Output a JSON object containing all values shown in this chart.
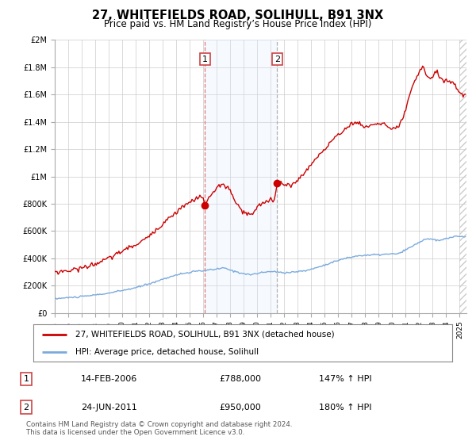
{
  "title": "27, WHITEFIELDS ROAD, SOLIHULL, B91 3NX",
  "subtitle": "Price paid vs. HM Land Registry’s House Price Index (HPI)",
  "title_fontsize": 10.5,
  "subtitle_fontsize": 8.5,
  "ylim": [
    0,
    2000000
  ],
  "xlim_start": 1995.0,
  "xlim_end": 2025.5,
  "yticks": [
    0,
    200000,
    400000,
    600000,
    800000,
    1000000,
    1200000,
    1400000,
    1600000,
    1800000,
    2000000
  ],
  "ytick_labels": [
    "£0",
    "£200K",
    "£400K",
    "£600K",
    "£800K",
    "£1M",
    "£1.2M",
    "£1.4M",
    "£1.6M",
    "£1.8M",
    "£2M"
  ],
  "xticks": [
    1995,
    1996,
    1997,
    1998,
    1999,
    2000,
    2001,
    2002,
    2003,
    2004,
    2005,
    2006,
    2007,
    2008,
    2009,
    2010,
    2011,
    2012,
    2013,
    2014,
    2015,
    2016,
    2017,
    2018,
    2019,
    2020,
    2021,
    2022,
    2023,
    2024,
    2025
  ],
  "sale1_x": 2006.12,
  "sale1_y": 788000,
  "sale1_date": "14-FEB-2006",
  "sale1_price": "£788,000",
  "sale1_hpi": "147% ↑ HPI",
  "sale2_x": 2011.48,
  "sale2_y": 950000,
  "sale2_date": "24-JUN-2011",
  "sale2_price": "£950,000",
  "sale2_hpi": "180% ↑ HPI",
  "red_line_color": "#cc0000",
  "blue_line_color": "#7aaadd",
  "shade_color": "#ddeeff",
  "grid_color": "#cccccc",
  "background_color": "#ffffff",
  "legend_label_red": "27, WHITEFIELDS ROAD, SOLIHULL, B91 3NX (detached house)",
  "legend_label_blue": "HPI: Average price, detached house, Solihull",
  "footer": "Contains HM Land Registry data © Crown copyright and database right 2024.\nThis data is licensed under the Open Government Licence v3.0."
}
